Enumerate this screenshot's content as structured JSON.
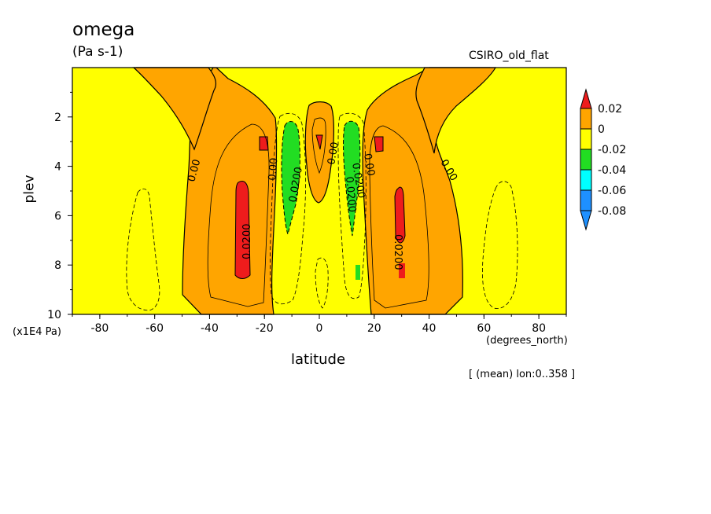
{
  "chart_data": {
    "type": "contour",
    "title": "omega",
    "units": "(Pa s-1)",
    "dataset": "CSIRO_old_flat",
    "xlabel": "latitude",
    "x_units": "(degrees_north)",
    "ylabel": "plev",
    "y_units": "(x1E4 Pa)",
    "note": "[ (mean) lon:0..358 ]",
    "xlim": [
      -90,
      90
    ],
    "ylim": [
      10,
      0
    ],
    "x_ticks": [
      -80,
      -60,
      -40,
      -20,
      0,
      20,
      40,
      60,
      80
    ],
    "y_ticks": [
      2,
      4,
      6,
      8,
      10
    ],
    "contour_labels": [
      "0.00",
      "0.00",
      "0.0200",
      "0.0200",
      "0.00",
      "0.0200",
      "0.0200",
      "0.00",
      "0.0200",
      "0.00"
    ],
    "legend": {
      "position": "right",
      "levels": [
        {
          "label": "0.02",
          "color": "#ee1c1c"
        },
        {
          "label": "0",
          "color": "#ffa500"
        },
        {
          "label": "-0.02",
          "color": "#ffff00"
        },
        {
          "label": "-0.04",
          "color": "#22dd22"
        },
        {
          "label": "-0.06",
          "color": "#00ffff"
        },
        {
          "label": "-0.08",
          "color": "#1e90ff"
        }
      ],
      "top_color": "#ee1c1c",
      "bottom_color": "#1e90ff"
    },
    "colors": {
      "background": "#ffff00",
      "positive": "#ffa500",
      "max": "#ee1c1c",
      "min": "#22dd22"
    }
  }
}
